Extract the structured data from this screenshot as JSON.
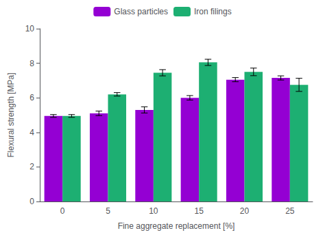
{
  "chart_data": {
    "type": "bar",
    "xlabel": "Fine aggregate replacement [%]",
    "ylabel": "Flexural strength [MPa]",
    "categories": [
      "0",
      "5",
      "10",
      "15",
      "20",
      "25"
    ],
    "series": [
      {
        "name": "Glass particles",
        "color": "#9400D3",
        "values": [
          4.95,
          5.1,
          5.3,
          6.0,
          7.05,
          7.15
        ],
        "errors": [
          0.08,
          0.13,
          0.18,
          0.13,
          0.12,
          0.12
        ]
      },
      {
        "name": "Iron filings",
        "color": "#1DAF72",
        "values": [
          4.95,
          6.2,
          7.45,
          8.05,
          7.5,
          6.75
        ],
        "errors": [
          0.08,
          0.1,
          0.18,
          0.18,
          0.22,
          0.38
        ]
      }
    ],
    "ylim": [
      0,
      10
    ],
    "yticks": [
      0,
      2,
      4,
      6,
      8,
      10
    ],
    "grid": false,
    "legend": "top"
  }
}
